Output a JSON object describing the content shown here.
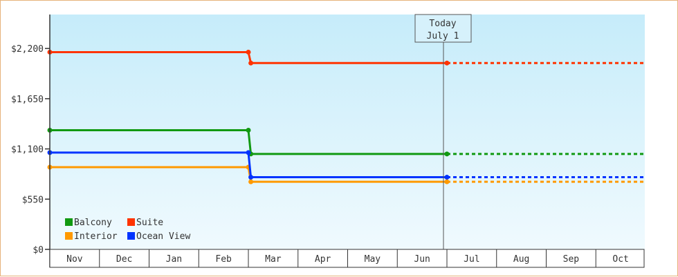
{
  "chart_data": {
    "type": "line",
    "step": true,
    "x_unit": "month",
    "months": [
      "Nov",
      "Dec",
      "Jan",
      "Feb",
      "Mar",
      "Apr",
      "May",
      "Jun",
      "Jul",
      "Aug",
      "Sep",
      "Oct"
    ],
    "today_marker": {
      "line1": "Today",
      "line2": "July 1",
      "x": 8.0
    },
    "ylim": [
      0,
      2500
    ],
    "yticks": [
      {
        "value": 0,
        "label": "$0"
      },
      {
        "value": 550,
        "label": "$550"
      },
      {
        "value": 1100,
        "label": "$1,100"
      },
      {
        "value": 1650,
        "label": "$1,650"
      },
      {
        "value": 2200,
        "label": "$2,200"
      }
    ],
    "grid": false,
    "legend_position": "bottom-left",
    "series": [
      {
        "name": "Balcony",
        "color": "#119911",
        "points": [
          [
            0,
            1305
          ],
          [
            4.0,
            1305
          ],
          [
            4.05,
            1045
          ],
          [
            8.0,
            1045
          ]
        ],
        "projected_to": 12.0
      },
      {
        "name": "Suite",
        "color": "#ff3300",
        "points": [
          [
            0,
            2160
          ],
          [
            4.0,
            2160
          ],
          [
            4.05,
            2040
          ],
          [
            8.0,
            2040
          ]
        ],
        "projected_to": 12.0
      },
      {
        "name": "Interior",
        "color": "#ff9900",
        "points": [
          [
            0,
            900
          ],
          [
            4.0,
            900
          ],
          [
            4.05,
            740
          ],
          [
            8.0,
            740
          ]
        ],
        "projected_to": 12.0
      },
      {
        "name": "Ocean View",
        "color": "#0033ff",
        "points": [
          [
            0,
            1060
          ],
          [
            4.0,
            1060
          ],
          [
            4.05,
            790
          ],
          [
            8.0,
            790
          ]
        ],
        "projected_to": 12.0
      }
    ]
  }
}
